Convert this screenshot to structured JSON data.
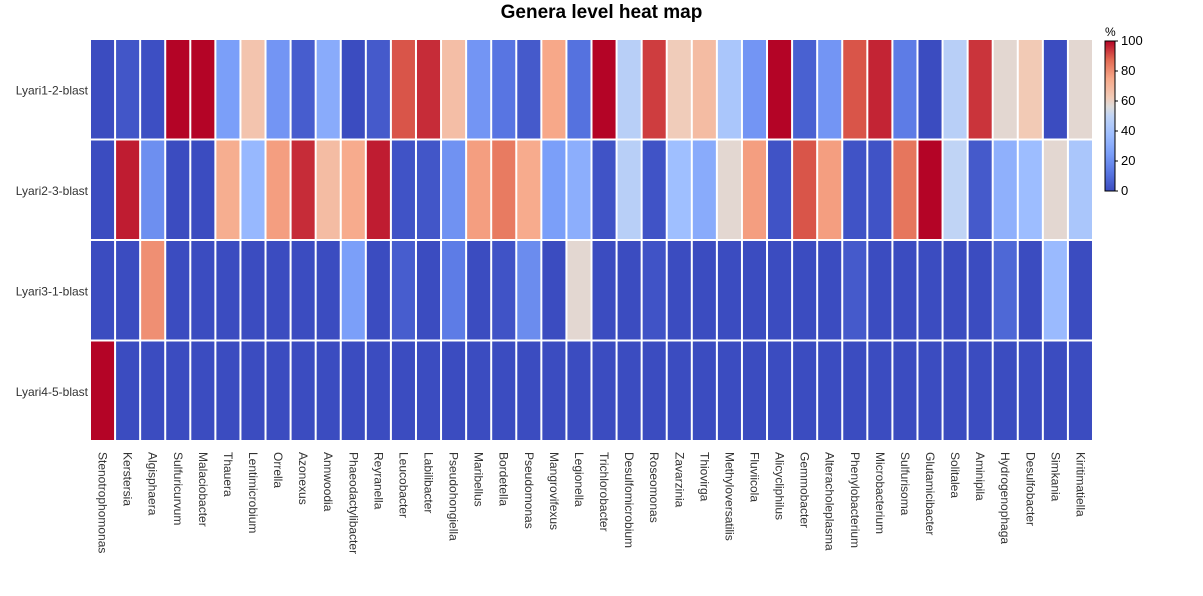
{
  "chart_data": {
    "type": "heatmap",
    "title": "Genera level heat map",
    "xlabel": "",
    "ylabel": "",
    "colorbar": {
      "label": "%",
      "range": [
        0,
        100
      ],
      "ticks": [
        0,
        20,
        40,
        60,
        80,
        100
      ],
      "colormap": "coolwarm",
      "colors": {
        "low": "#3b4cc0",
        "mid": "#dddddd",
        "high": "#b40426"
      }
    },
    "rows": [
      "Lyari1-2-blast",
      "Lyari2-3-blast",
      "Lyari3-1-blast",
      "Lyari4-5-blast"
    ],
    "columns": [
      "Stenotrophomonas",
      "Kerstersia",
      "Algisphaera",
      "Sulfuricurvum",
      "Malaciobacter",
      "Thauera",
      "Lentimicrobium",
      "Orrella",
      "Azonexus",
      "Annwoodia",
      "Phaeodactylibacter",
      "Reyranella",
      "Leucobacter",
      "Labilibacter",
      "Pseudohongiella",
      "Maribellus",
      "Bordetella",
      "Pseudomonas",
      "Mangrovifexus",
      "Legionella",
      "Trichlorobacter",
      "Desulfomicrobium",
      "Roseomonas",
      "Zavarzinia",
      "Thiovirga",
      "Methyloversatilis",
      "Fluviicola",
      "Alicycliphilus",
      "Gemmobacter",
      "Alteracholeplasma",
      "Phenylobacterium",
      "Microbacterium",
      "Sulfurisoma",
      "Glutamicibacter",
      "Solitalea",
      "Aminipila",
      "Hydrogenophaga",
      "Desulfobacter",
      "Simkania",
      "Kiritimatiella"
    ],
    "values": [
      [
        0,
        3,
        1,
        100,
        100,
        25,
        65,
        22,
        5,
        30,
        0,
        4,
        90,
        95,
        67,
        22,
        12,
        4,
        75,
        11,
        100,
        47,
        93,
        62,
        68,
        42,
        22,
        100,
        6,
        22,
        90,
        96,
        14,
        0,
        47,
        94,
        58,
        63,
        0,
        58
      ],
      [
        0,
        97,
        20,
        0,
        0,
        73,
        35,
        77,
        95,
        68,
        74,
        97,
        2,
        3,
        21,
        77,
        84,
        74,
        25,
        31,
        2,
        47,
        2,
        38,
        30,
        58,
        77,
        2,
        90,
        77,
        2,
        2,
        85,
        100,
        50,
        4,
        32,
        37,
        58,
        42
      ],
      [
        0,
        0,
        80,
        0,
        0,
        0,
        0,
        0,
        0,
        0,
        25,
        0,
        5,
        0,
        14,
        0,
        2,
        19,
        0,
        58,
        0,
        0,
        2,
        0,
        0,
        0,
        0,
        0,
        0,
        0,
        4,
        0,
        0,
        0,
        0,
        0,
        8,
        0,
        36,
        0
      ],
      [
        100,
        0,
        0,
        0,
        0,
        0,
        0,
        0,
        0,
        0,
        0,
        0,
        0,
        0,
        0,
        0,
        0,
        0,
        0,
        0,
        0,
        0,
        0,
        0,
        0,
        0,
        0,
        0,
        0,
        0,
        0,
        0,
        0,
        0,
        0,
        0,
        0,
        0,
        0,
        0
      ]
    ]
  }
}
